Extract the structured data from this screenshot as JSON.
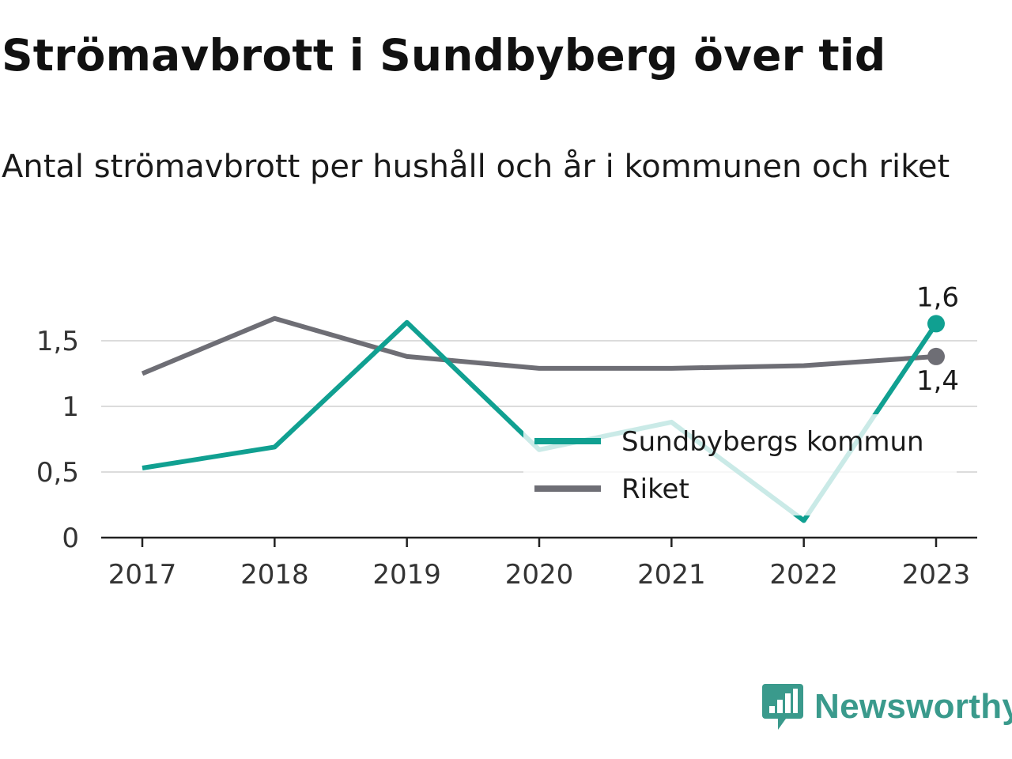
{
  "chart_data": {
    "type": "line",
    "title": "Strömavbrott i Sundbyberg över tid",
    "subtitle": "Antal strömavbrott per hushåll och år i kommunen och riket",
    "xlabel": "",
    "ylabel": "",
    "categories": [
      "2017",
      "2018",
      "2019",
      "2020",
      "2021",
      "2022",
      "2023"
    ],
    "ylim": [
      0,
      1.8
    ],
    "yticks": [
      {
        "value": 0,
        "label": "0"
      },
      {
        "value": 0.5,
        "label": "0,5"
      },
      {
        "value": 1,
        "label": "1"
      },
      {
        "value": 1.5,
        "label": "1,5"
      }
    ],
    "grid": true,
    "legend_position": "middle-right",
    "series": [
      {
        "name": "Sundbybergs kommun",
        "color": "#10a091",
        "values": [
          0.53,
          0.69,
          1.64,
          0.67,
          0.88,
          0.13,
          1.63
        ],
        "end_label": "1,6"
      },
      {
        "name": "Riket",
        "color": "#6e6e75",
        "values": [
          1.25,
          1.67,
          1.38,
          1.29,
          1.29,
          1.31,
          1.38
        ],
        "end_label": "1,4"
      }
    ]
  },
  "brand": {
    "name": "Newsworthy",
    "icon": "newsworthy-logo-icon",
    "color": "#3a9a8c"
  }
}
